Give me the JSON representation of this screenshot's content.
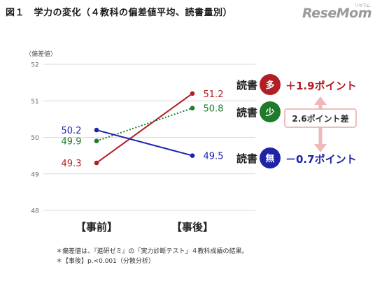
{
  "title": "図１　学力の変化（４教科の偏差値平均、読書量別）",
  "logo": {
    "text": "ReseMom",
    "ruby": "リセマム"
  },
  "chart_data": {
    "type": "line",
    "ylabel": "（偏差値）",
    "ylim": [
      48,
      52
    ],
    "yticks": [
      48,
      49,
      50,
      51,
      52
    ],
    "categories": [
      "【事前】",
      "【事後】"
    ],
    "grid": true,
    "series": [
      {
        "name": "読書 多",
        "badge": "多",
        "values": [
          49.3,
          51.2
        ],
        "labels": [
          "49.3",
          "51.2"
        ],
        "color": "#b11f24",
        "style": "solid",
        "change": "＋1.9ポイント"
      },
      {
        "name": "読書 少",
        "badge": "少",
        "values": [
          49.9,
          50.8
        ],
        "labels": [
          "49.9",
          "50.8"
        ],
        "color": "#1f7a2a",
        "style": "dotted",
        "change": ""
      },
      {
        "name": "読書 無",
        "badge": "無",
        "values": [
          50.2,
          49.5
        ],
        "labels": [
          "50.2",
          "49.5"
        ],
        "color": "#1e23a8",
        "style": "solid",
        "change": "－0.7ポイント"
      }
    ],
    "series_prefix": "読書",
    "annotation": "2.6ポイント差"
  },
  "notes": [
    "＊偏差値は、『進研ゼミ』の「実力診断テスト」４教科成績の結果。",
    "＊【事後】p.<0.001（分散分析）"
  ],
  "colors": {
    "grid": "#d9d9d9",
    "annotation_border": "#e9a9a9",
    "annotation_arrow": "#f0b8b8"
  }
}
